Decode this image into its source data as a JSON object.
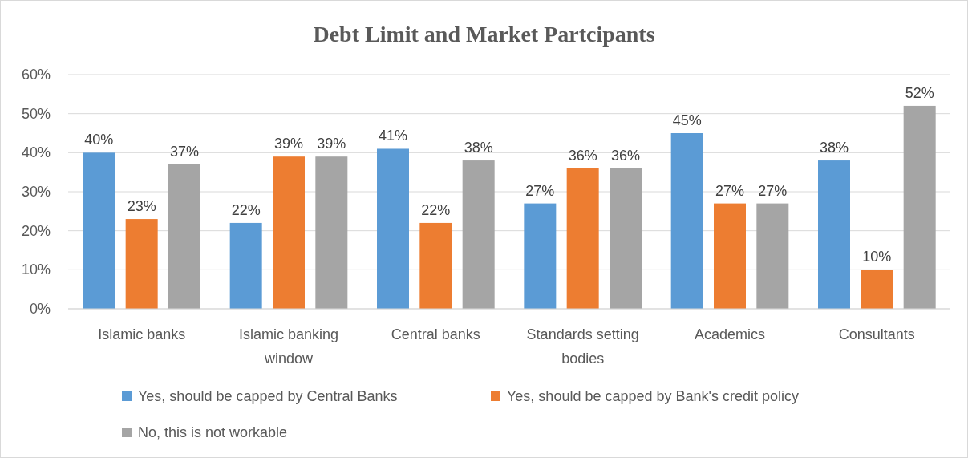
{
  "chart_data": {
    "type": "bar",
    "title": "Debt Limit and Market Partcipants",
    "categories": [
      "Islamic banks",
      "Islamic banking window",
      "Central banks",
      "Standards setting bodies",
      "Academics",
      "Consultants"
    ],
    "series": [
      {
        "name": "Yes, should be capped by Central Banks",
        "color": "#5b9bd5",
        "values": [
          40,
          22,
          41,
          27,
          45,
          38
        ]
      },
      {
        "name": "Yes, should be capped by Bank's credit policy",
        "color": "#ed7d31",
        "values": [
          23,
          39,
          22,
          36,
          27,
          10
        ]
      },
      {
        "name": "No, this is not workable",
        "color": "#a5a5a5",
        "values": [
          37,
          39,
          38,
          36,
          27,
          52
        ]
      }
    ],
    "ylim": [
      0,
      60
    ],
    "yticks": [
      {
        "value": 0,
        "label": "0%"
      },
      {
        "value": 10,
        "label": "10%"
      },
      {
        "value": 20,
        "label": "20%"
      },
      {
        "value": 30,
        "label": "30%"
      },
      {
        "value": 40,
        "label": "40%"
      },
      {
        "value": 50,
        "label": "50%"
      },
      {
        "value": 60,
        "label": "60%"
      }
    ],
    "grid": "y",
    "legend": "bottom",
    "value_labels": [
      [
        "40%",
        "22%",
        "41%",
        "27%",
        "45%",
        "38%"
      ],
      [
        "23%",
        "39%",
        "22%",
        "36%",
        "27%",
        "10%"
      ],
      [
        "37%",
        "39%",
        "38%",
        "36%",
        "27%",
        "52%"
      ]
    ]
  }
}
